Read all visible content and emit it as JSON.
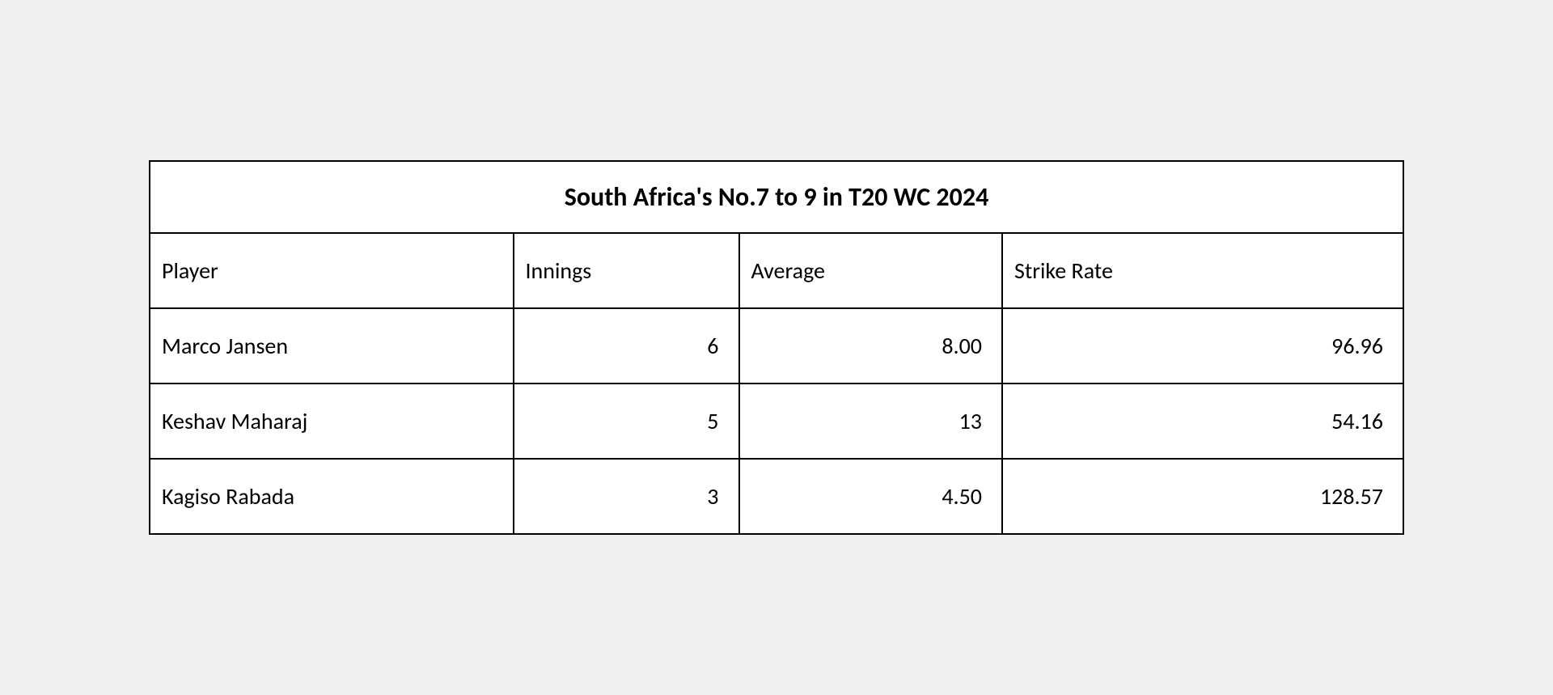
{
  "table": {
    "title": "South Africa's No.7 to 9 in T20 WC 2024",
    "columns": [
      "Player",
      "Innings",
      "Average",
      "Strike Rate"
    ],
    "rows": [
      {
        "player": "Marco Jansen",
        "innings": "6",
        "average": "8.00",
        "strike_rate": "96.96"
      },
      {
        "player": "Keshav Maharaj",
        "innings": "5",
        "average": "13",
        "strike_rate": "54.16"
      },
      {
        "player": "Kagiso Rabada",
        "innings": "3",
        "average": "4.50",
        "strike_rate": "128.57"
      }
    ],
    "column_widths_pct": [
      29,
      18,
      21,
      32
    ],
    "border_color": "#000000",
    "background_color": "#ffffff",
    "text_color": "#000000",
    "title_fontsize": 32,
    "cell_fontsize": 28,
    "font_family": "Calibri"
  }
}
